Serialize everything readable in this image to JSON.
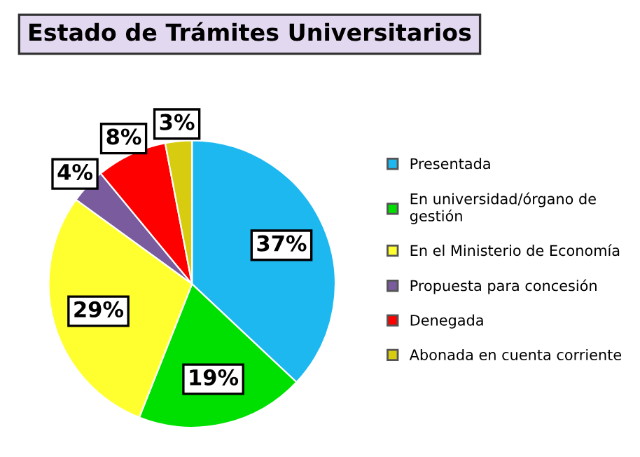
{
  "chart_data": {
    "type": "pie",
    "title": "Estado de Trámites Universitarios",
    "categories": [
      "Presentada",
      "En universidad/órgano de\ngestión",
      "En el Ministerio de Economía",
      "Propuesta para concesión",
      "Denegada",
      "Abonada en cuenta corriente"
    ],
    "values": [
      37,
      19,
      29,
      4,
      8,
      3
    ],
    "colors": [
      "#1db8f0",
      "#00e000",
      "#ffff30",
      "#7a5c9e",
      "#ff0000",
      "#d8cc10"
    ],
    "value_labels": [
      "37%",
      "19%",
      "29%",
      "4%",
      "8%",
      "3%"
    ],
    "legend": "right"
  }
}
